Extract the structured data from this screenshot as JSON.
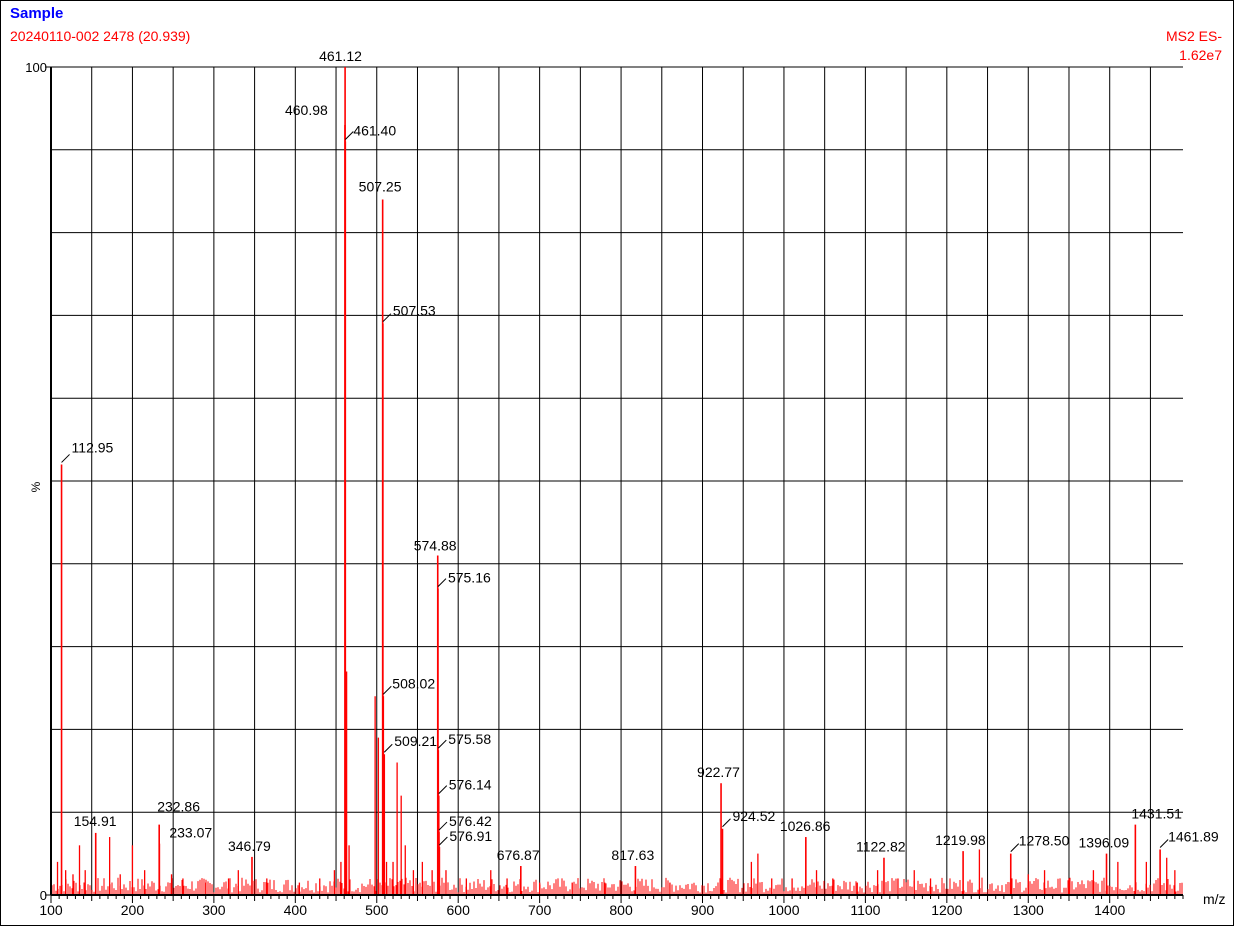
{
  "header": {
    "sample_label": "Sample",
    "run_label": "20240110-002 2478 (20.939)",
    "scan_mode": "MS2 ES-",
    "max_intensity": "1.62e7"
  },
  "colors": {
    "sample_label": "#0000ff",
    "run_label": "#ff0000",
    "spectrum": "#ff0000",
    "grid": "#000000",
    "text": "#000000"
  },
  "chart_data": {
    "type": "bar",
    "title": "Sample",
    "xlabel": "m/z",
    "ylabel": "%",
    "xlim": [
      100,
      1490
    ],
    "ylim": [
      0,
      100
    ],
    "x_ticks": [
      100,
      200,
      300,
      400,
      500,
      600,
      700,
      800,
      900,
      1000,
      1100,
      1200,
      1300,
      1400
    ],
    "y_ticks": [
      0,
      100
    ],
    "y_tick_labels": [
      "0",
      "100"
    ],
    "grid": true,
    "x_grid_step": 50,
    "y_grid_step": 10,
    "labeled_peaks": [
      {
        "mz": 112.95,
        "intensity": 52,
        "label": "112.95"
      },
      {
        "mz": 154.91,
        "intensity": 7.5,
        "label": "154.91"
      },
      {
        "mz": 232.86,
        "intensity": 8.5,
        "label": "232.86"
      },
      {
        "mz": 233.07,
        "intensity": 6.2,
        "label": "233.07"
      },
      {
        "mz": 346.79,
        "intensity": 4.6,
        "label": "346.79"
      },
      {
        "mz": 460.98,
        "intensity": 93,
        "label": "460.98"
      },
      {
        "mz": 461.12,
        "intensity": 100,
        "label": "461.12"
      },
      {
        "mz": 461.4,
        "intensity": 91,
        "label": "461.40"
      },
      {
        "mz": 507.25,
        "intensity": 84,
        "label": "507.25"
      },
      {
        "mz": 507.53,
        "intensity": 69,
        "label": "507.53"
      },
      {
        "mz": 508.02,
        "intensity": 24,
        "label": "508.02"
      },
      {
        "mz": 509.21,
        "intensity": 17,
        "label": "509.21"
      },
      {
        "mz": 574.88,
        "intensity": 41,
        "label": "574.88"
      },
      {
        "mz": 575.16,
        "intensity": 37,
        "label": "575.16"
      },
      {
        "mz": 575.58,
        "intensity": 17.5,
        "label": "575.58"
      },
      {
        "mz": 576.14,
        "intensity": 12,
        "label": "576.14"
      },
      {
        "mz": 576.42,
        "intensity": 7.6,
        "label": "576.42"
      },
      {
        "mz": 576.91,
        "intensity": 5.8,
        "label": "576.91"
      },
      {
        "mz": 676.87,
        "intensity": 3.5,
        "label": "676.87"
      },
      {
        "mz": 817.63,
        "intensity": 3.5,
        "label": "817.63"
      },
      {
        "mz": 922.77,
        "intensity": 13.5,
        "label": "922.77"
      },
      {
        "mz": 924.52,
        "intensity": 8,
        "label": "924.52"
      },
      {
        "mz": 1026.86,
        "intensity": 7,
        "label": "1026.86"
      },
      {
        "mz": 1122.82,
        "intensity": 4.5,
        "label": "1122.82"
      },
      {
        "mz": 1219.98,
        "intensity": 5.3,
        "label": "1219.98"
      },
      {
        "mz": 1278.5,
        "intensity": 5,
        "label": "1278.50"
      },
      {
        "mz": 1396.09,
        "intensity": 5,
        "label": "1396.09"
      },
      {
        "mz": 1431.51,
        "intensity": 8.5,
        "label": "1431.51"
      },
      {
        "mz": 1461.89,
        "intensity": 5.5,
        "label": "1461.89"
      }
    ],
    "unlabeled_peaks": [
      {
        "mz": 108,
        "intensity": 4
      },
      {
        "mz": 118,
        "intensity": 3
      },
      {
        "mz": 127,
        "intensity": 2.5
      },
      {
        "mz": 135,
        "intensity": 6
      },
      {
        "mz": 142,
        "intensity": 3
      },
      {
        "mz": 172,
        "intensity": 7
      },
      {
        "mz": 185,
        "intensity": 2.5
      },
      {
        "mz": 200,
        "intensity": 6
      },
      {
        "mz": 215,
        "intensity": 3
      },
      {
        "mz": 248,
        "intensity": 2.5
      },
      {
        "mz": 262,
        "intensity": 2
      },
      {
        "mz": 290,
        "intensity": 1.5
      },
      {
        "mz": 318,
        "intensity": 2
      },
      {
        "mz": 330,
        "intensity": 3
      },
      {
        "mz": 365,
        "intensity": 2
      },
      {
        "mz": 405,
        "intensity": 1.5
      },
      {
        "mz": 430,
        "intensity": 2
      },
      {
        "mz": 448,
        "intensity": 3
      },
      {
        "mz": 456,
        "intensity": 4
      },
      {
        "mz": 463,
        "intensity": 27
      },
      {
        "mz": 466,
        "intensity": 6
      },
      {
        "mz": 498,
        "intensity": 24
      },
      {
        "mz": 502,
        "intensity": 19
      },
      {
        "mz": 512,
        "intensity": 4
      },
      {
        "mz": 520,
        "intensity": 4
      },
      {
        "mz": 525,
        "intensity": 16
      },
      {
        "mz": 530,
        "intensity": 12
      },
      {
        "mz": 535,
        "intensity": 6
      },
      {
        "mz": 545,
        "intensity": 3
      },
      {
        "mz": 556,
        "intensity": 4
      },
      {
        "mz": 568,
        "intensity": 3
      },
      {
        "mz": 585,
        "intensity": 3
      },
      {
        "mz": 610,
        "intensity": 2
      },
      {
        "mz": 640,
        "intensity": 3
      },
      {
        "mz": 660,
        "intensity": 2
      },
      {
        "mz": 700,
        "intensity": 1.5
      },
      {
        "mz": 740,
        "intensity": 1.5
      },
      {
        "mz": 780,
        "intensity": 1.5
      },
      {
        "mz": 860,
        "intensity": 1.5
      },
      {
        "mz": 960,
        "intensity": 4
      },
      {
        "mz": 968,
        "intensity": 5
      },
      {
        "mz": 985,
        "intensity": 2
      },
      {
        "mz": 1010,
        "intensity": 2
      },
      {
        "mz": 1040,
        "intensity": 3
      },
      {
        "mz": 1060,
        "intensity": 2
      },
      {
        "mz": 1090,
        "intensity": 1.5
      },
      {
        "mz": 1115,
        "intensity": 3
      },
      {
        "mz": 1140,
        "intensity": 2
      },
      {
        "mz": 1160,
        "intensity": 3
      },
      {
        "mz": 1180,
        "intensity": 2
      },
      {
        "mz": 1240,
        "intensity": 5.5
      },
      {
        "mz": 1300,
        "intensity": 2.5
      },
      {
        "mz": 1320,
        "intensity": 3
      },
      {
        "mz": 1350,
        "intensity": 2
      },
      {
        "mz": 1380,
        "intensity": 3
      },
      {
        "mz": 1410,
        "intensity": 4
      },
      {
        "mz": 1445,
        "intensity": 4
      },
      {
        "mz": 1470,
        "intensity": 4.5
      },
      {
        "mz": 1480,
        "intensity": 3
      }
    ]
  }
}
